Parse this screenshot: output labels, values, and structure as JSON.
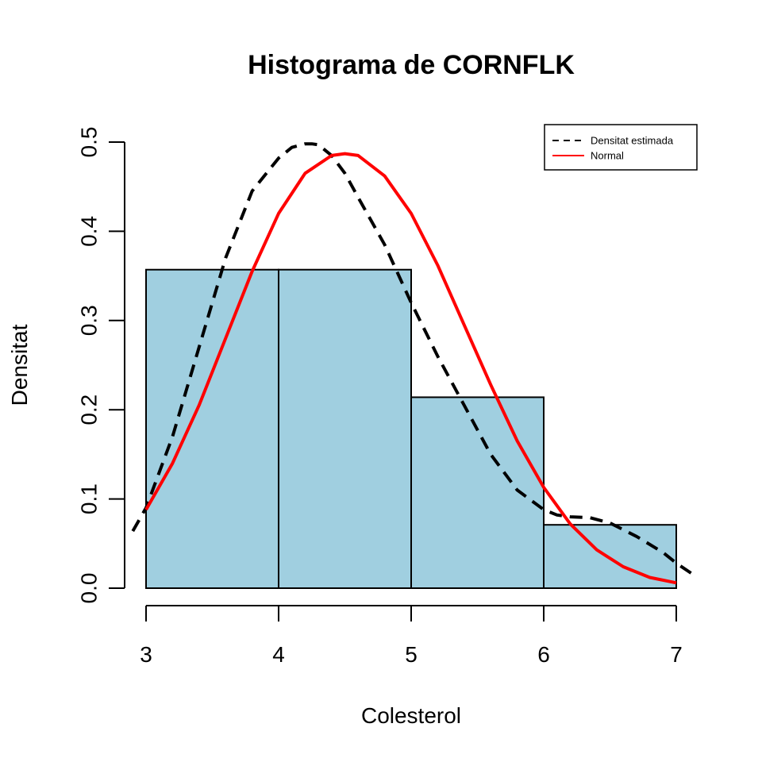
{
  "chart_data": {
    "type": "bar",
    "title": "Histograma de CORNFLK",
    "xlabel": "Colesterol",
    "ylabel": "Densitat",
    "xlim": [
      2.9,
      7.15
    ],
    "ylim": [
      0,
      0.5
    ],
    "x_ticks": [
      "3",
      "4",
      "5",
      "6",
      "7"
    ],
    "y_ticks": [
      "0.0",
      "0.1",
      "0.2",
      "0.3",
      "0.4",
      "0.5"
    ],
    "bins": [
      {
        "from": 3,
        "to": 4,
        "density": 0.357
      },
      {
        "from": 4,
        "to": 5,
        "density": 0.357
      },
      {
        "from": 5,
        "to": 6,
        "density": 0.214
      },
      {
        "from": 6,
        "to": 7,
        "density": 0.071
      }
    ],
    "bar_color": "#a0cfe0",
    "legend": {
      "position": "top-right",
      "entries": [
        {
          "label": "Densitat estimada",
          "color": "#000000",
          "style": "dashed"
        },
        {
          "label": "Normal",
          "color": "#ff0000",
          "style": "solid"
        }
      ]
    },
    "series": [
      {
        "name": "Densitat estimada",
        "color": "#000000",
        "style": "dashed",
        "x": [
          2.9,
          3.0,
          3.2,
          3.4,
          3.6,
          3.8,
          4.0,
          4.1,
          4.2,
          4.25,
          4.3,
          4.4,
          4.5,
          4.6,
          4.8,
          5.0,
          5.2,
          5.4,
          5.6,
          5.8,
          6.0,
          6.1,
          6.2,
          6.35,
          6.5,
          6.7,
          6.9,
          7.0,
          7.15
        ],
        "y": [
          0.064,
          0.09,
          0.17,
          0.27,
          0.37,
          0.445,
          0.482,
          0.494,
          0.498,
          0.498,
          0.497,
          0.485,
          0.465,
          0.438,
          0.385,
          0.32,
          0.26,
          0.205,
          0.15,
          0.11,
          0.088,
          0.082,
          0.08,
          0.079,
          0.073,
          0.058,
          0.04,
          0.028,
          0.013
        ]
      },
      {
        "name": "Normal",
        "color": "#ff0000",
        "style": "solid",
        "x": [
          3.0,
          3.2,
          3.4,
          3.6,
          3.8,
          4.0,
          4.2,
          4.4,
          4.5,
          4.6,
          4.8,
          5.0,
          5.2,
          5.4,
          5.6,
          5.8,
          6.0,
          6.2,
          6.4,
          6.6,
          6.8,
          7.0
        ],
        "y": [
          0.088,
          0.14,
          0.205,
          0.28,
          0.355,
          0.42,
          0.465,
          0.485,
          0.487,
          0.485,
          0.462,
          0.42,
          0.362,
          0.295,
          0.228,
          0.165,
          0.113,
          0.072,
          0.043,
          0.024,
          0.012,
          0.006
        ]
      }
    ]
  }
}
